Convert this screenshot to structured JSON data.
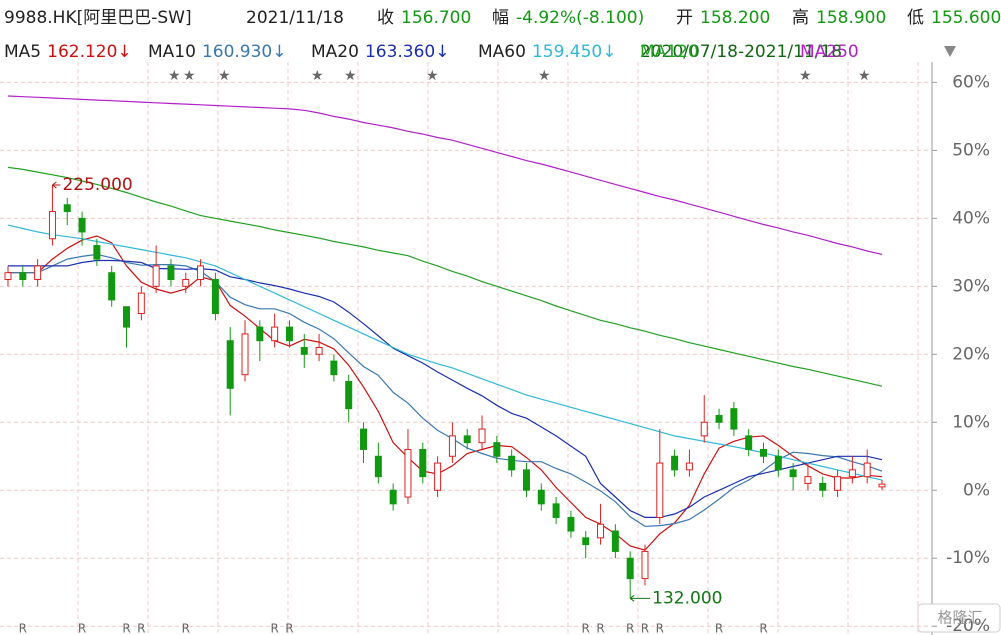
{
  "header": {
    "symbol": "9988.HK[阿里巴巴-SW]",
    "date": "2021/11/18",
    "close_label": "收",
    "close": "156.700",
    "change_label": "幅",
    "change": "-4.92%(-8.100)",
    "open_label": "开",
    "open": "158.200",
    "high_label": "高",
    "high": "158.900",
    "low_label": "低",
    "low": "155.600"
  },
  "chart_data": {
    "type": "candlestick",
    "range_text": "2020/07/18-2021/11/18",
    "watermark": "格隆汇",
    "max_label": "225.000",
    "min_label": "132.000",
    "ylim": [
      -21,
      63
    ],
    "yticks": [
      {
        "value": 60,
        "label": "60%"
      },
      {
        "value": 50,
        "label": "50%"
      },
      {
        "value": 40,
        "label": "40%"
      },
      {
        "value": 30,
        "label": "30%"
      },
      {
        "value": 20,
        "label": "20%"
      },
      {
        "value": 10,
        "label": "10%"
      },
      {
        "value": 0,
        "label": "0%"
      },
      {
        "value": -10,
        "label": "-10%"
      },
      {
        "value": -20,
        "label": "-20%"
      }
    ],
    "grid": true,
    "up_color": "#e02020",
    "down_color": "#119911",
    "categories": [
      null,
      "R",
      null,
      null,
      null,
      "R",
      null,
      null,
      "R",
      "R",
      null,
      null,
      "R",
      null,
      null,
      null,
      null,
      null,
      "R",
      "R",
      null,
      null,
      null,
      null,
      null,
      null,
      null,
      null,
      null,
      null,
      null,
      null,
      null,
      null,
      null,
      null,
      null,
      null,
      null,
      "R",
      "R",
      null,
      "R",
      "R",
      "R",
      null,
      null,
      null,
      "R",
      null,
      null,
      "R",
      null,
      null,
      null,
      null,
      null,
      null,
      null,
      null
    ],
    "ohlc": [
      [
        31,
        33,
        30,
        32
      ],
      [
        32,
        33,
        30,
        31
      ],
      [
        31,
        34,
        30,
        33
      ],
      [
        37,
        44.9,
        36,
        41
      ],
      [
        42,
        43,
        39,
        41
      ],
      [
        40,
        41,
        36,
        38
      ],
      [
        36,
        37,
        33,
        34
      ],
      [
        32,
        33,
        27,
        28
      ],
      [
        27,
        27,
        21,
        24
      ],
      [
        26,
        30,
        25,
        29
      ],
      [
        30,
        36,
        29,
        33
      ],
      [
        33,
        34,
        30,
        31
      ],
      [
        30,
        32,
        29,
        31
      ],
      [
        31,
        34,
        30,
        33
      ],
      [
        31,
        32,
        25,
        26
      ],
      [
        22,
        24,
        11,
        15
      ],
      [
        17,
        25,
        16,
        23
      ],
      [
        24,
        25,
        19,
        22
      ],
      [
        22,
        26,
        21,
        24
      ],
      [
        24,
        25,
        21,
        22
      ],
      [
        21,
        23,
        18,
        20
      ],
      [
        20,
        23,
        19,
        21
      ],
      [
        19,
        20,
        16,
        17
      ],
      [
        16,
        17,
        10,
        12
      ],
      [
        9,
        10,
        4,
        6
      ],
      [
        5,
        7,
        1,
        2
      ],
      [
        0,
        1,
        -3,
        -2
      ],
      [
        -1,
        9,
        -2,
        6
      ],
      [
        6,
        7,
        1,
        2
      ],
      [
        0,
        5,
        -1,
        4
      ],
      [
        5,
        10,
        4,
        8
      ],
      [
        8,
        9,
        6,
        7
      ],
      [
        7,
        11,
        6,
        9
      ],
      [
        7,
        8,
        4,
        5
      ],
      [
        5,
        6,
        2,
        3
      ],
      [
        3,
        4,
        -1,
        0
      ],
      [
        0,
        1,
        -3,
        -2
      ],
      [
        -2,
        -1,
        -5,
        -4
      ],
      [
        -4,
        -3,
        -7,
        -6
      ],
      [
        -7,
        -6,
        -10,
        -8
      ],
      [
        -7,
        -2,
        -8,
        -5
      ],
      [
        -6,
        -5,
        -10,
        -9
      ],
      [
        -10,
        -9,
        -15.9,
        -13
      ],
      [
        -13,
        -8,
        -14,
        -9
      ],
      [
        -4,
        9,
        -5,
        4
      ],
      [
        5,
        6,
        2,
        3
      ],
      [
        3,
        6,
        2,
        4
      ],
      [
        8,
        14,
        7,
        10
      ],
      [
        11,
        12,
        9,
        10
      ],
      [
        12,
        13,
        8,
        9
      ],
      [
        8,
        9,
        5,
        6
      ],
      [
        6,
        7,
        4,
        5
      ],
      [
        5,
        6,
        2,
        3
      ],
      [
        3,
        4,
        0,
        2
      ],
      [
        1,
        4,
        0,
        2
      ],
      [
        1,
        2,
        -1,
        0
      ],
      [
        0,
        3,
        -1,
        2
      ],
      [
        2,
        5,
        1,
        3
      ],
      [
        2,
        6,
        1,
        4
      ],
      [
        0.5,
        1.5,
        0,
        0.9
      ]
    ],
    "series": [
      {
        "name": "MA5",
        "color": "#cc1010",
        "value_label": "162.120↓",
        "values": [
          32,
          32,
          32,
          34,
          35.6,
          36.8,
          37.4,
          36.4,
          33,
          30.6,
          29.6,
          29,
          29.6,
          31.4,
          30.8,
          27.2,
          25.6,
          23.8,
          22,
          21.2,
          22.2,
          21.8,
          20.8,
          18.4,
          15.2,
          11.6,
          7,
          4.8,
          2.8,
          2.4,
          3.6,
          5.4,
          6,
          6.6,
          6.4,
          4.8,
          3,
          0.4,
          -1.8,
          -4,
          -5,
          -6.4,
          -8.2,
          -8.8,
          -6.4,
          -4.8,
          -2.2,
          2.4,
          6.2,
          7.2,
          7.8,
          8,
          6.6,
          5,
          3.6,
          2.4,
          1.8,
          1.8,
          2.2,
          2
        ]
      },
      {
        "name": "MA10",
        "color": "#3a78b0",
        "value_label": "160.930↓",
        "values": [
          32,
          32,
          32,
          33,
          34,
          34.4,
          34.7,
          34.2,
          33.5,
          33.1,
          33.2,
          33.2,
          33,
          32.2,
          30.7,
          28.4,
          27.3,
          26.7,
          26.7,
          26,
          24.7,
          23.7,
          22.3,
          20.2,
          18.2,
          16.9,
          14.4,
          12.8,
          10.6,
          8.8,
          7.6,
          6.2,
          5.4,
          4.7,
          4.4,
          4.2,
          4.2,
          3.2,
          2.4,
          1.2,
          -0.1,
          -1.7,
          -3.9,
          -5.3,
          -5.2,
          -4.9,
          -4.3,
          -2.9,
          -1.3,
          0.4,
          1.5,
          2.9,
          4.5,
          5.6,
          5.4,
          5.1,
          4.9,
          4.2,
          3.6,
          2.8
        ]
      },
      {
        "name": "MA20",
        "color": "#1a2fb0",
        "value_label": "163.360↓",
        "values": [
          33,
          33,
          33,
          33,
          33,
          33.5,
          33.8,
          33.8,
          33.7,
          33.5,
          32.6,
          32.6,
          32.5,
          32.6,
          32.4,
          31.4,
          31,
          30.5,
          30.1,
          29.6,
          29,
          28.5,
          27.7,
          26.2,
          24.5,
          22.7,
          20.9,
          19.8,
          18.7,
          17.4,
          16.2,
          15,
          13.9,
          12.5,
          11.3,
          10.6,
          9.3,
          8,
          6.5,
          5,
          1,
          -1,
          -3,
          -4,
          -4,
          -3.5,
          -2.5,
          -1,
          0,
          1,
          2,
          2.5,
          3,
          3.5,
          4,
          4.5,
          5,
          5,
          5,
          4.5
        ]
      },
      {
        "name": "MA60",
        "color": "#30b8d8",
        "value_label": "159.450↓",
        "values": [
          39,
          38.5,
          38,
          37.6,
          37.3,
          37,
          36.6,
          36.2,
          35.8,
          35.4,
          35,
          34.6,
          34.2,
          33.6,
          33,
          32,
          31,
          30,
          29,
          28,
          27,
          26,
          25,
          24,
          23,
          22,
          21,
          20,
          19.3,
          18.6,
          18,
          17.2,
          16.4,
          15.6,
          14.8,
          14,
          13.4,
          12.8,
          12.2,
          11.6,
          11,
          10.4,
          9.8,
          9.2,
          8.6,
          8,
          7.6,
          7.2,
          6.8,
          6.4,
          6,
          5.5,
          5,
          4.5,
          4,
          3.5,
          3,
          2.5,
          2,
          1.5
        ]
      },
      {
        "name": "MA120",
        "color": "#22a022",
        "values": [
          47.5,
          47.2,
          46.8,
          46.4,
          46,
          45.5,
          45,
          44.4,
          43.8,
          43.1,
          42.4,
          41.8,
          41.1,
          40.4,
          40,
          39.6,
          39.2,
          38.8,
          38.3,
          37.9,
          37.5,
          37.1,
          36.6,
          36.2,
          35.8,
          35.3,
          34.9,
          34.5,
          33.7,
          33,
          32.2,
          31.5,
          30.7,
          30,
          29.3,
          28.6,
          27.9,
          27.1,
          26.4,
          25.7,
          25,
          24.5,
          23.9,
          23.4,
          22.8,
          22.3,
          21.7,
          21.2,
          20.7,
          20.2,
          19.7,
          19.2,
          18.7,
          18.2,
          17.8,
          17.3,
          16.8,
          16.3,
          15.8,
          15.3
        ]
      },
      {
        "name": "MA250",
        "color": "#b020c8",
        "values": [
          58,
          57.9,
          57.8,
          57.7,
          57.6,
          57.5,
          57.4,
          57.3,
          57.2,
          57.1,
          57,
          56.9,
          56.8,
          56.7,
          56.6,
          56.5,
          56.4,
          56.3,
          56.2,
          56.1,
          55.9,
          55.5,
          55,
          54.6,
          54.1,
          53.7,
          53.3,
          52.8,
          52.4,
          51.9,
          51.5,
          50.9,
          50.3,
          49.7,
          49.1,
          48.5,
          48,
          47.4,
          46.8,
          46.2,
          45.6,
          45,
          44.4,
          43.8,
          43.2,
          42.7,
          42.1,
          41.5,
          40.9,
          40.3,
          39.7,
          39.1,
          38.6,
          38,
          37.5,
          36.9,
          36.3,
          35.8,
          35.2,
          34.7
        ]
      }
    ]
  }
}
